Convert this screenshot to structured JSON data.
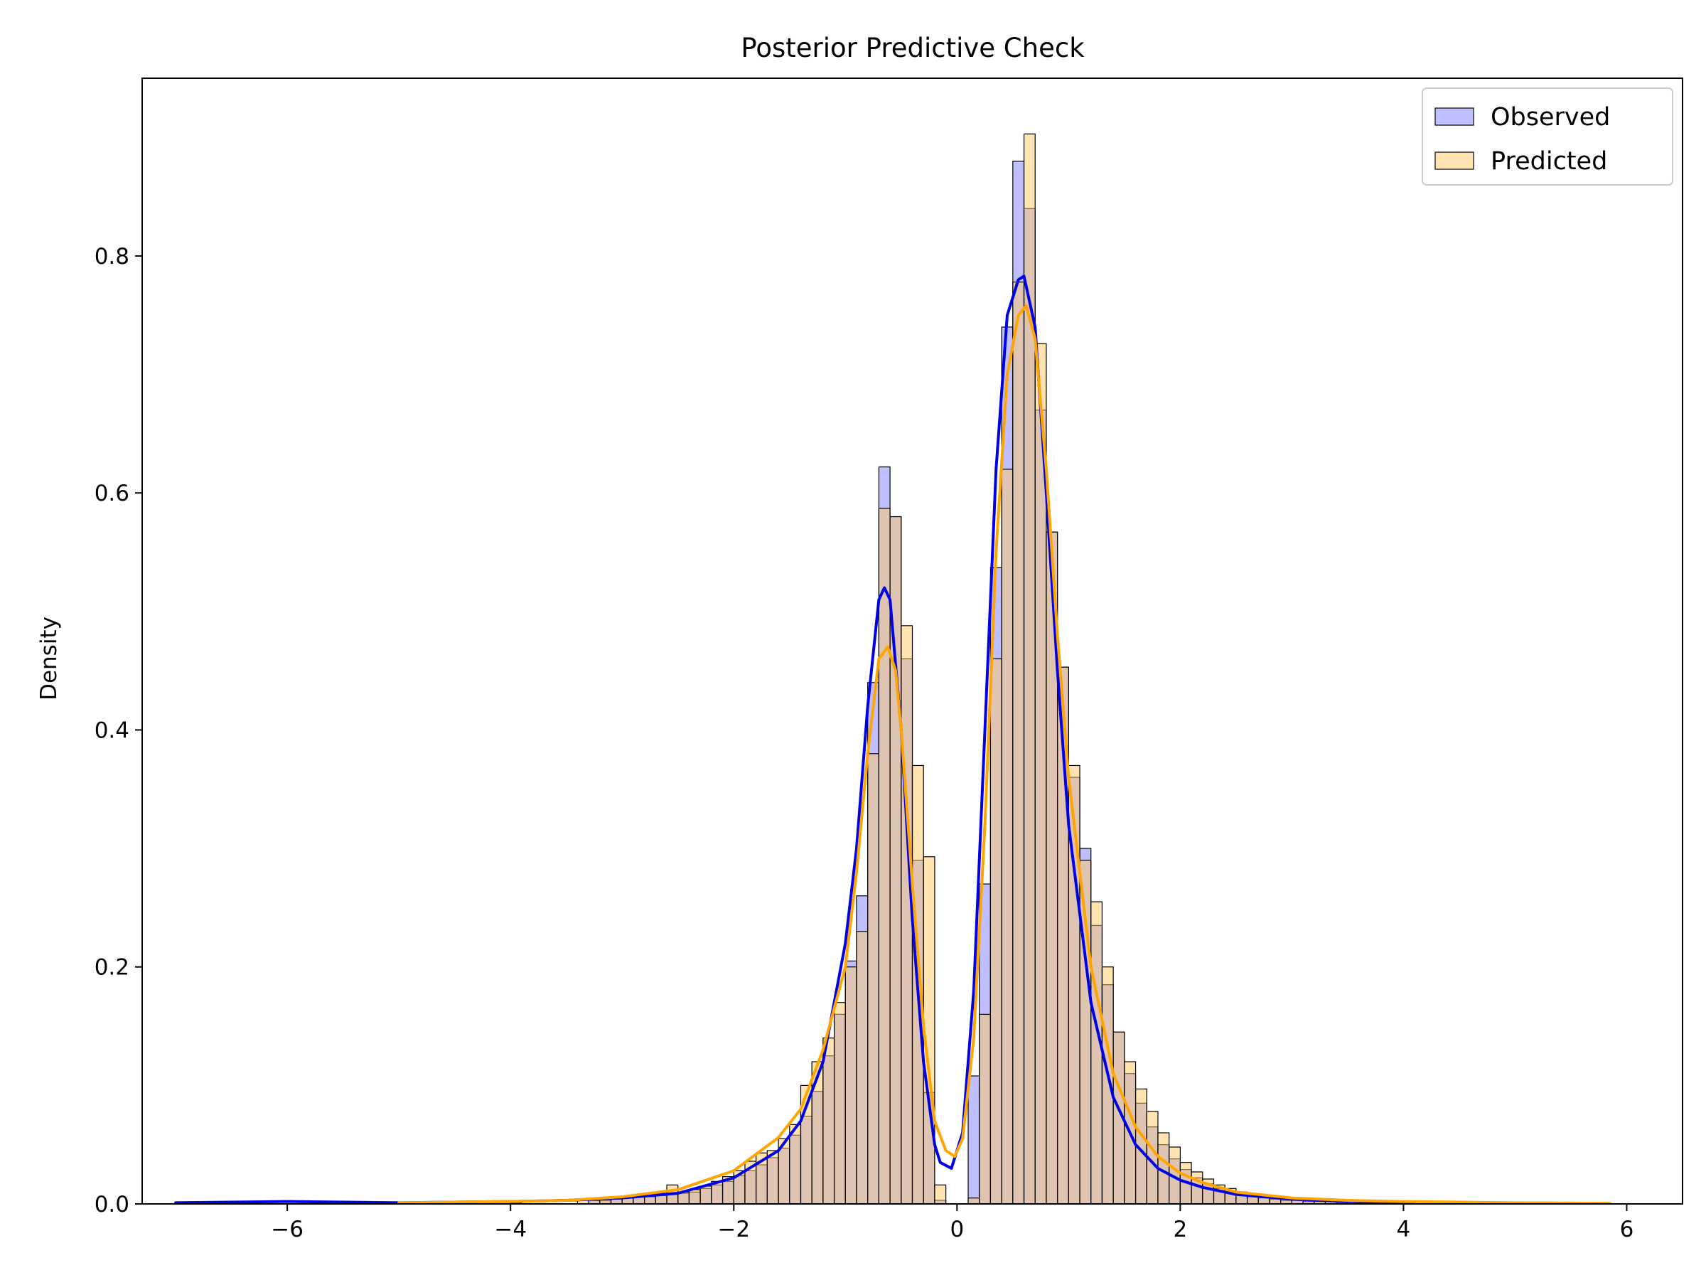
{
  "chart_data": {
    "type": "histogram+kde",
    "title": "Posterior Predictive Check",
    "xlabel": "",
    "ylabel": "Density",
    "xlim": [
      -7.3,
      6.5
    ],
    "ylim": [
      0,
      0.95
    ],
    "xticks": [
      -6,
      -4,
      -2,
      0,
      2,
      4,
      6
    ],
    "xtick_labels": [
      "−6",
      "−4",
      "−2",
      "0",
      "2",
      "4",
      "6"
    ],
    "yticks": [
      0.0,
      0.2,
      0.4,
      0.6,
      0.8
    ],
    "ytick_labels": [
      "0.0",
      "0.2",
      "0.4",
      "0.6",
      "0.8"
    ],
    "legend_position": "top-right",
    "bin_width": 0.1,
    "series": [
      {
        "name": "Observed",
        "fill": "#8080ff",
        "line_color": "#0000e6",
        "bins": [
          [
            -3.3,
            0.003
          ],
          [
            -3.2,
            0.003
          ],
          [
            -3.1,
            0.004
          ],
          [
            -3.0,
            0.005
          ],
          [
            -2.9,
            0.006
          ],
          [
            -2.8,
            0.006
          ],
          [
            -2.7,
            0.007
          ],
          [
            -2.6,
            0.008
          ],
          [
            -2.5,
            0.009
          ],
          [
            -2.4,
            0.01
          ],
          [
            -2.3,
            0.013
          ],
          [
            -2.2,
            0.016
          ],
          [
            -2.1,
            0.019
          ],
          [
            -2.0,
            0.024
          ],
          [
            -1.9,
            0.028
          ],
          [
            -1.8,
            0.033
          ],
          [
            -1.7,
            0.039
          ],
          [
            -1.6,
            0.047
          ],
          [
            -1.5,
            0.058
          ],
          [
            -1.4,
            0.074
          ],
          [
            -1.3,
            0.095
          ],
          [
            -1.2,
            0.125
          ],
          [
            -1.1,
            0.16
          ],
          [
            -1.0,
            0.205
          ],
          [
            -0.9,
            0.26
          ],
          [
            -0.8,
            0.44
          ],
          [
            -0.7,
            0.622
          ],
          [
            -0.6,
            0.58
          ],
          [
            -0.5,
            0.46
          ],
          [
            -0.4,
            0.29
          ],
          [
            -0.3,
            0.094
          ],
          [
            -0.2,
            0.003
          ],
          [
            0.1,
            0.108
          ],
          [
            0.2,
            0.27
          ],
          [
            0.3,
            0.537
          ],
          [
            0.4,
            0.74
          ],
          [
            0.5,
            0.88
          ],
          [
            0.6,
            0.84
          ],
          [
            0.7,
            0.67
          ],
          [
            0.8,
            0.567
          ],
          [
            0.9,
            0.453
          ],
          [
            1.0,
            0.36
          ],
          [
            1.1,
            0.3
          ],
          [
            1.2,
            0.235
          ],
          [
            1.3,
            0.185
          ],
          [
            1.4,
            0.145
          ],
          [
            1.5,
            0.11
          ],
          [
            1.6,
            0.085
          ],
          [
            1.7,
            0.065
          ],
          [
            1.8,
            0.05
          ],
          [
            1.9,
            0.038
          ],
          [
            2.0,
            0.029
          ],
          [
            2.1,
            0.022
          ],
          [
            2.2,
            0.017
          ],
          [
            2.3,
            0.013
          ],
          [
            2.4,
            0.01
          ],
          [
            2.5,
            0.008
          ],
          [
            2.6,
            0.006
          ],
          [
            2.7,
            0.005
          ],
          [
            2.8,
            0.004
          ],
          [
            2.9,
            0.003
          ],
          [
            3.0,
            0.003
          ],
          [
            3.1,
            0.002
          ],
          [
            3.2,
            0.002
          ],
          [
            3.3,
            0.002
          ],
          [
            3.4,
            0.001
          ]
        ],
        "kde": [
          [
            -7.0,
            0.001
          ],
          [
            -6.0,
            0.002
          ],
          [
            -5.0,
            0.001
          ],
          [
            -4.0,
            0.002
          ],
          [
            -3.5,
            0.003
          ],
          [
            -3.0,
            0.005
          ],
          [
            -2.5,
            0.009
          ],
          [
            -2.0,
            0.022
          ],
          [
            -1.6,
            0.045
          ],
          [
            -1.4,
            0.07
          ],
          [
            -1.2,
            0.12
          ],
          [
            -1.0,
            0.22
          ],
          [
            -0.9,
            0.3
          ],
          [
            -0.8,
            0.42
          ],
          [
            -0.7,
            0.51
          ],
          [
            -0.65,
            0.52
          ],
          [
            -0.6,
            0.51
          ],
          [
            -0.5,
            0.4
          ],
          [
            -0.4,
            0.24
          ],
          [
            -0.3,
            0.12
          ],
          [
            -0.2,
            0.05
          ],
          [
            -0.15,
            0.035
          ],
          [
            -0.05,
            0.03
          ],
          [
            0.05,
            0.06
          ],
          [
            0.15,
            0.18
          ],
          [
            0.25,
            0.4
          ],
          [
            0.35,
            0.62
          ],
          [
            0.45,
            0.75
          ],
          [
            0.55,
            0.78
          ],
          [
            0.6,
            0.783
          ],
          [
            0.7,
            0.74
          ],
          [
            0.8,
            0.6
          ],
          [
            0.9,
            0.45
          ],
          [
            1.0,
            0.32
          ],
          [
            1.2,
            0.17
          ],
          [
            1.4,
            0.09
          ],
          [
            1.6,
            0.05
          ],
          [
            1.8,
            0.03
          ],
          [
            2.0,
            0.02
          ],
          [
            2.2,
            0.014
          ],
          [
            2.5,
            0.008
          ],
          [
            3.0,
            0.004
          ],
          [
            3.5,
            0.002
          ],
          [
            4.0,
            0.001
          ]
        ]
      },
      {
        "name": "Predicted",
        "fill": "#ffc966",
        "line_color": "#ffa500",
        "bins": [
          [
            -5.0,
            0.001
          ],
          [
            -4.0,
            0.001
          ],
          [
            -3.4,
            0.003
          ],
          [
            -3.3,
            0.003
          ],
          [
            -3.2,
            0.004
          ],
          [
            -3.1,
            0.005
          ],
          [
            -3.0,
            0.006
          ],
          [
            -2.9,
            0.007
          ],
          [
            -2.8,
            0.007
          ],
          [
            -2.7,
            0.009
          ],
          [
            -2.6,
            0.016
          ],
          [
            -2.5,
            0.01
          ],
          [
            -2.4,
            0.012
          ],
          [
            -2.3,
            0.015
          ],
          [
            -2.2,
            0.019
          ],
          [
            -2.1,
            0.023
          ],
          [
            -2.0,
            0.028
          ],
          [
            -1.9,
            0.036
          ],
          [
            -1.8,
            0.043
          ],
          [
            -1.7,
            0.045
          ],
          [
            -1.6,
            0.055
          ],
          [
            -1.5,
            0.067
          ],
          [
            -1.4,
            0.1
          ],
          [
            -1.3,
            0.12
          ],
          [
            -1.2,
            0.14
          ],
          [
            -1.1,
            0.17
          ],
          [
            -1.0,
            0.2
          ],
          [
            -0.9,
            0.23
          ],
          [
            -0.8,
            0.38
          ],
          [
            -0.7,
            0.587
          ],
          [
            -0.6,
            0.58
          ],
          [
            -0.5,
            0.488
          ],
          [
            -0.4,
            0.37
          ],
          [
            -0.3,
            0.293
          ],
          [
            -0.2,
            0.016
          ],
          [
            0.1,
            0.005
          ],
          [
            0.2,
            0.16
          ],
          [
            0.3,
            0.46
          ],
          [
            0.4,
            0.62
          ],
          [
            0.5,
            0.778
          ],
          [
            0.6,
            0.903
          ],
          [
            0.7,
            0.726
          ],
          [
            0.8,
            0.567
          ],
          [
            0.9,
            0.453
          ],
          [
            1.0,
            0.37
          ],
          [
            1.1,
            0.29
          ],
          [
            1.2,
            0.255
          ],
          [
            1.3,
            0.2
          ],
          [
            1.4,
            0.145
          ],
          [
            1.5,
            0.12
          ],
          [
            1.6,
            0.097
          ],
          [
            1.7,
            0.078
          ],
          [
            1.8,
            0.06
          ],
          [
            1.9,
            0.048
          ],
          [
            2.0,
            0.035
          ],
          [
            2.1,
            0.027
          ],
          [
            2.2,
            0.021
          ],
          [
            2.3,
            0.016
          ],
          [
            2.4,
            0.013
          ],
          [
            2.5,
            0.01
          ],
          [
            2.6,
            0.008
          ],
          [
            2.7,
            0.007
          ],
          [
            2.8,
            0.006
          ],
          [
            2.9,
            0.005
          ],
          [
            3.0,
            0.004
          ],
          [
            3.1,
            0.004
          ],
          [
            3.2,
            0.003
          ],
          [
            3.3,
            0.003
          ],
          [
            3.4,
            0.003
          ],
          [
            3.5,
            0.002
          ],
          [
            3.6,
            0.002
          ],
          [
            3.7,
            0.002
          ],
          [
            3.8,
            0.002
          ],
          [
            3.9,
            0.002
          ],
          [
            4.0,
            0.001
          ],
          [
            4.5,
            0.001
          ],
          [
            5.0,
            0.001
          ]
        ],
        "kde": [
          [
            -5.0,
            0.001
          ],
          [
            -4.0,
            0.002
          ],
          [
            -3.5,
            0.003
          ],
          [
            -3.0,
            0.006
          ],
          [
            -2.5,
            0.012
          ],
          [
            -2.0,
            0.028
          ],
          [
            -1.6,
            0.056
          ],
          [
            -1.4,
            0.08
          ],
          [
            -1.2,
            0.13
          ],
          [
            -1.0,
            0.2
          ],
          [
            -0.9,
            0.28
          ],
          [
            -0.8,
            0.38
          ],
          [
            -0.7,
            0.46
          ],
          [
            -0.62,
            0.47
          ],
          [
            -0.55,
            0.45
          ],
          [
            -0.5,
            0.4
          ],
          [
            -0.4,
            0.27
          ],
          [
            -0.3,
            0.15
          ],
          [
            -0.2,
            0.07
          ],
          [
            -0.1,
            0.045
          ],
          [
            -0.02,
            0.04
          ],
          [
            0.05,
            0.055
          ],
          [
            0.15,
            0.14
          ],
          [
            0.25,
            0.32
          ],
          [
            0.35,
            0.55
          ],
          [
            0.45,
            0.7
          ],
          [
            0.55,
            0.75
          ],
          [
            0.62,
            0.758
          ],
          [
            0.7,
            0.73
          ],
          [
            0.8,
            0.62
          ],
          [
            0.9,
            0.48
          ],
          [
            1.0,
            0.36
          ],
          [
            1.2,
            0.2
          ],
          [
            1.4,
            0.11
          ],
          [
            1.6,
            0.065
          ],
          [
            1.8,
            0.04
          ],
          [
            2.0,
            0.026
          ],
          [
            2.2,
            0.018
          ],
          [
            2.5,
            0.01
          ],
          [
            3.0,
            0.005
          ],
          [
            3.5,
            0.003
          ],
          [
            4.0,
            0.002
          ],
          [
            5.0,
            0.001
          ],
          [
            5.85,
            0.0005
          ]
        ]
      }
    ]
  }
}
